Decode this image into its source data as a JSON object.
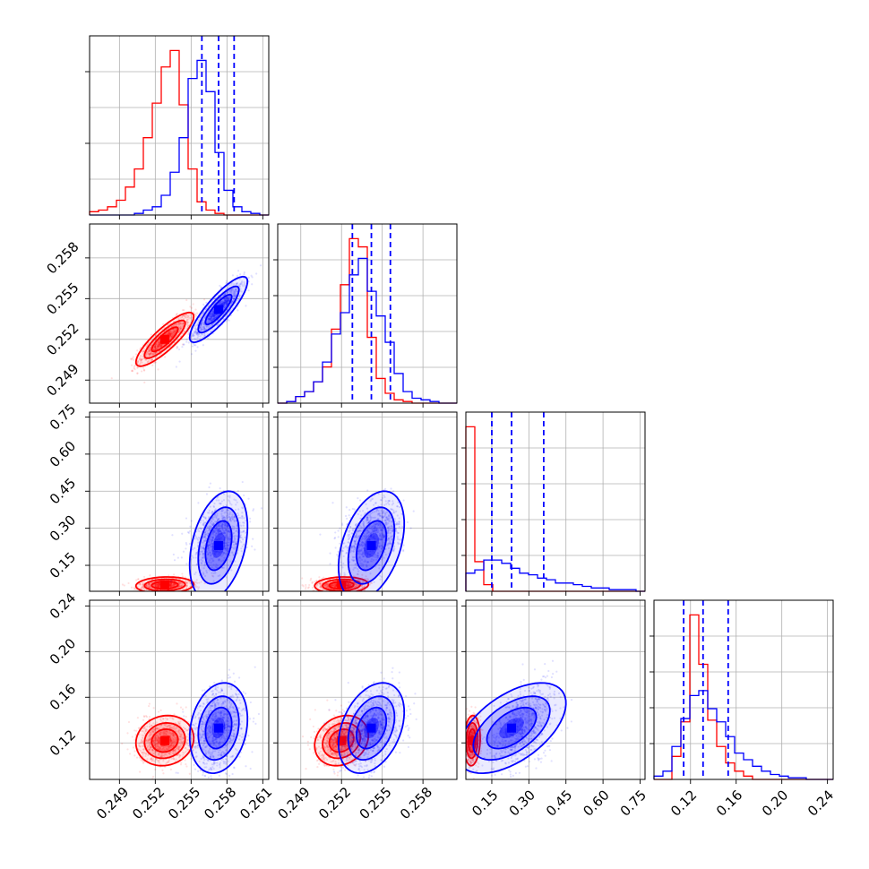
{
  "chart_data": {
    "type": "corner",
    "colors": {
      "red_series": "#ff0000",
      "blue_series": "#0000ff"
    },
    "params": [
      {
        "id": "p0",
        "range": [
          0.2465,
          0.2615
        ],
        "ticks": [
          0.249,
          0.252,
          0.255,
          0.258,
          0.261
        ],
        "tick_labels": [
          "0.249",
          "0.252",
          "0.255",
          "0.258",
          "0.261"
        ]
      },
      {
        "id": "p1",
        "range": [
          0.2473,
          0.2605
        ],
        "ticks": [
          0.249,
          0.252,
          0.255,
          0.258
        ],
        "tick_labels": [
          "0.249",
          "0.252",
          "0.255",
          "0.258"
        ]
      },
      {
        "id": "p2",
        "range": [
          0.045,
          0.77
        ],
        "ticks": [
          0.15,
          0.3,
          0.45,
          0.6,
          0.75
        ],
        "tick_labels": [
          "0.15",
          "0.30",
          "0.45",
          "0.60",
          "0.75"
        ]
      },
      {
        "id": "p3",
        "range": [
          0.088,
          0.245
        ],
        "ticks": [
          0.12,
          0.16,
          0.2,
          0.24
        ],
        "tick_labels": [
          "0.12",
          "0.16",
          "0.20",
          "0.24"
        ]
      }
    ],
    "quantiles_blue": [
      [
        0.2559,
        0.2573,
        0.2586
      ],
      [
        0.2528,
        0.2542,
        0.2556
      ],
      [
        0.15,
        0.23,
        0.36
      ],
      [
        0.114,
        0.131,
        0.153
      ]
    ],
    "series": [
      {
        "color": "#ff0000",
        "means": [
          0.2528,
          0.252,
          0.07,
          0.122
        ],
        "sds": [
          0.0011,
          0.0009,
          0.015,
          0.01
        ],
        "corr": [
          [
            1,
            0.85,
            0.1,
            0.1
          ],
          [
            0.85,
            1,
            0.1,
            0.2
          ],
          [
            0.1,
            0.1,
            1,
            0.1
          ],
          [
            0.1,
            0.2,
            0.1,
            1
          ]
        ],
        "hist": [
          [
            0.02,
            0.03,
            0.05,
            0.09,
            0.17,
            0.28,
            0.47,
            0.68,
            0.9,
            1.0,
            0.67,
            0.28,
            0.08,
            0.03,
            0.01,
            0,
            0,
            0,
            0,
            0
          ],
          [
            0,
            0.01,
            0.04,
            0.07,
            0.13,
            0.22,
            0.45,
            0.72,
            1.0,
            0.95,
            0.4,
            0.15,
            0.06,
            0.02,
            0.01,
            0,
            0,
            0,
            0,
            0
          ],
          [
            1.0,
            0.18,
            0.04,
            0,
            0,
            0,
            0,
            0,
            0,
            0,
            0,
            0,
            0,
            0,
            0,
            0,
            0,
            0,
            0,
            0
          ],
          [
            0,
            0,
            0.14,
            0.35,
            1.0,
            0.7,
            0.36,
            0.2,
            0.1,
            0.05,
            0.02,
            0,
            0,
            0,
            0,
            0,
            0,
            0,
            0,
            0
          ]
        ]
      },
      {
        "color": "#0000ff",
        "means": [
          0.2573,
          0.2542,
          0.23,
          0.133
        ],
        "sds": [
          0.0011,
          0.0011,
          0.1,
          0.018
        ],
        "corr": [
          [
            1,
            0.85,
            0.35,
            0.2
          ],
          [
            0.85,
            1,
            0.4,
            0.35
          ],
          [
            0.35,
            0.4,
            1,
            0.55
          ],
          [
            0.2,
            0.35,
            0.55,
            1
          ]
        ],
        "hist": [
          [
            0,
            0,
            0,
            0,
            0,
            0.01,
            0.03,
            0.05,
            0.12,
            0.26,
            0.47,
            0.83,
            0.94,
            0.75,
            0.38,
            0.15,
            0.05,
            0.02,
            0.01,
            0
          ],
          [
            0,
            0.01,
            0.04,
            0.07,
            0.13,
            0.25,
            0.42,
            0.55,
            0.78,
            0.88,
            0.68,
            0.53,
            0.37,
            0.18,
            0.07,
            0.03,
            0.02,
            0.01,
            0,
            0
          ],
          [
            0.11,
            0.13,
            0.19,
            0.19,
            0.17,
            0.14,
            0.11,
            0.1,
            0.08,
            0.07,
            0.05,
            0.05,
            0.04,
            0.03,
            0.02,
            0.02,
            0.01,
            0.01,
            0.01,
            0
          ],
          [
            0.02,
            0.05,
            0.2,
            0.37,
            0.51,
            0.54,
            0.43,
            0.35,
            0.26,
            0.16,
            0.12,
            0.08,
            0.05,
            0.03,
            0.02,
            0.01,
            0.01,
            0,
            0,
            0
          ]
        ]
      }
    ]
  }
}
